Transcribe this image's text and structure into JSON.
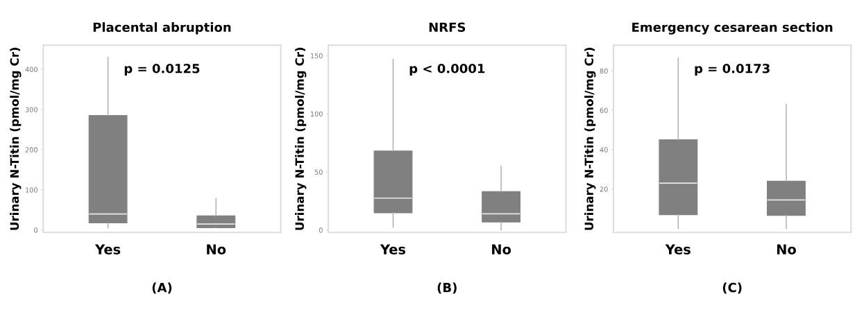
{
  "chart_data": [
    {
      "type": "box",
      "title": "Placental abruption",
      "ylabel": "Urinary N-Titin (pmol/mg Cr)",
      "categories": [
        "Yes",
        "No"
      ],
      "color": "#808080",
      "ylim": [
        -6,
        460
      ],
      "yticks": [
        0,
        100,
        200,
        300,
        400
      ],
      "grid": false,
      "boxes": [
        {
          "low": 5,
          "q1": 18,
          "median": 40,
          "q3": 285,
          "high": 430
        },
        {
          "low": 6,
          "q1": 6,
          "median": 15,
          "q3": 35,
          "high": 79
        }
      ],
      "annotations": [
        "p = 0.0125",
        "(A)"
      ]
    },
    {
      "type": "box",
      "title": "NRFS",
      "ylabel": "Urinary N-Titin (pmol/mg Cr)",
      "categories": [
        "Yes",
        "No"
      ],
      "color": "#808080",
      "ylim": [
        -2,
        159
      ],
      "yticks": [
        0,
        50,
        100,
        150
      ],
      "grid": false,
      "boxes": [
        {
          "low": 2.5,
          "q1": 15,
          "median": 27.5,
          "q3": 68,
          "high": 147
        },
        {
          "low": 0,
          "q1": 7,
          "median": 14,
          "q3": 33,
          "high": 55
        }
      ],
      "annotations": [
        "p < 0.0001",
        "(B)"
      ]
    },
    {
      "type": "box",
      "title": "Emergency cesarean section",
      "ylabel": "Urinary N-Titin (pmol/mg Cr)",
      "categories": [
        "Yes",
        "No"
      ],
      "color": "#808080",
      "ylim": [
        -2,
        93
      ],
      "yticks": [
        20,
        40,
        60,
        80
      ],
      "grid": false,
      "boxes": [
        {
          "low": 0,
          "q1": 7,
          "median": 23,
          "q3": 45,
          "high": 86.5
        },
        {
          "low": 0,
          "q1": 6.7,
          "median": 14.5,
          "q3": 24,
          "high": 63
        }
      ],
      "annotations": [
        "p = 0.0173",
        "(C)"
      ]
    }
  ]
}
